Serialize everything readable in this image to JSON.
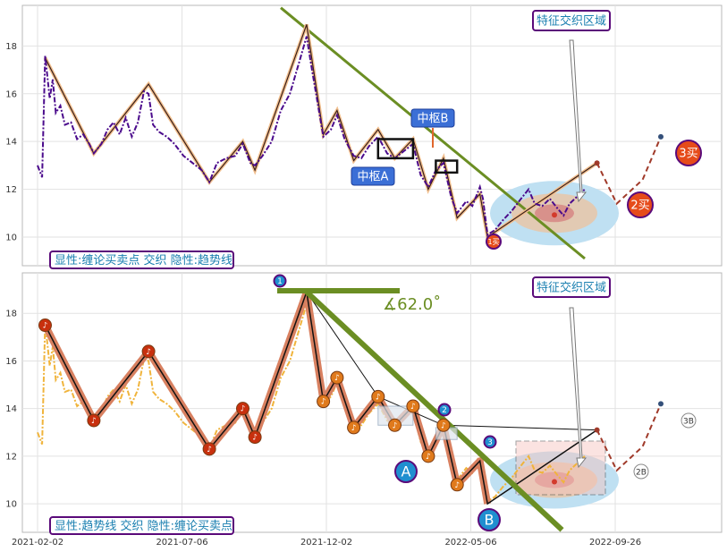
{
  "chart_data": [
    {
      "type": "line",
      "panel": "top",
      "legend_text": "显性:缠论买卖点 交织 隐性:趋势线",
      "ylim": [
        8.8,
        19.7
      ],
      "yticks": [
        10,
        12,
        14,
        16,
        18
      ],
      "zone_label": "特征交织区域",
      "pivot_labels": [
        "中枢A",
        "中枢B"
      ],
      "buy_labels": [
        "1买",
        "2买",
        "3买"
      ],
      "zigzag": [
        {
          "x": 5,
          "y": 17.5
        },
        {
          "x": 37,
          "y": 13.5
        },
        {
          "x": 73,
          "y": 16.4
        },
        {
          "x": 113,
          "y": 12.3
        },
        {
          "x": 135,
          "y": 14.0
        },
        {
          "x": 143,
          "y": 12.8
        },
        {
          "x": 177,
          "y": 18.9
        },
        {
          "x": 188,
          "y": 14.3
        },
        {
          "x": 197,
          "y": 15.3
        },
        {
          "x": 208,
          "y": 13.2
        },
        {
          "x": 224,
          "y": 14.5
        },
        {
          "x": 235,
          "y": 13.3
        },
        {
          "x": 247,
          "y": 14.1
        },
        {
          "x": 257,
          "y": 12.0
        },
        {
          "x": 267,
          "y": 13.3
        },
        {
          "x": 276,
          "y": 10.8
        },
        {
          "x": 291,
          "y": 11.8
        },
        {
          "x": 296,
          "y": 10.0
        },
        {
          "x": 368,
          "y": 13.1
        }
      ],
      "forecast": [
        {
          "x": 368,
          "y": 13.1
        },
        {
          "x": 381,
          "y": 11.4
        },
        {
          "x": 398,
          "y": 12.4
        },
        {
          "x": 410,
          "y": 14.2
        }
      ],
      "price": [
        {
          "x": 0,
          "y": 13.0
        },
        {
          "x": 3,
          "y": 12.5
        },
        {
          "x": 5,
          "y": 17.6
        },
        {
          "x": 8,
          "y": 15.8
        },
        {
          "x": 10,
          "y": 16.6
        },
        {
          "x": 12,
          "y": 15.2
        },
        {
          "x": 15,
          "y": 15.5
        },
        {
          "x": 18,
          "y": 14.7
        },
        {
          "x": 22,
          "y": 14.8
        },
        {
          "x": 26,
          "y": 14.1
        },
        {
          "x": 30,
          "y": 14.3
        },
        {
          "x": 34,
          "y": 13.9
        },
        {
          "x": 37,
          "y": 13.5
        },
        {
          "x": 42,
          "y": 13.9
        },
        {
          "x": 46,
          "y": 14.5
        },
        {
          "x": 50,
          "y": 14.8
        },
        {
          "x": 54,
          "y": 14.3
        },
        {
          "x": 58,
          "y": 15.0
        },
        {
          "x": 62,
          "y": 14.2
        },
        {
          "x": 66,
          "y": 14.8
        },
        {
          "x": 70,
          "y": 16.1
        },
        {
          "x": 73,
          "y": 16.0
        },
        {
          "x": 76,
          "y": 14.7
        },
        {
          "x": 80,
          "y": 14.4
        },
        {
          "x": 85,
          "y": 14.2
        },
        {
          "x": 90,
          "y": 13.9
        },
        {
          "x": 96,
          "y": 13.4
        },
        {
          "x": 102,
          "y": 13.1
        },
        {
          "x": 108,
          "y": 12.8
        },
        {
          "x": 113,
          "y": 12.3
        },
        {
          "x": 118,
          "y": 13.1
        },
        {
          "x": 124,
          "y": 13.3
        },
        {
          "x": 130,
          "y": 13.4
        },
        {
          "x": 135,
          "y": 13.9
        },
        {
          "x": 140,
          "y": 13.1
        },
        {
          "x": 143,
          "y": 13.0
        },
        {
          "x": 148,
          "y": 13.4
        },
        {
          "x": 154,
          "y": 14.0
        },
        {
          "x": 160,
          "y": 15.3
        },
        {
          "x": 166,
          "y": 16.0
        },
        {
          "x": 172,
          "y": 17.3
        },
        {
          "x": 177,
          "y": 18.4
        },
        {
          "x": 180,
          "y": 17.2
        },
        {
          "x": 184,
          "y": 15.7
        },
        {
          "x": 188,
          "y": 14.2
        },
        {
          "x": 193,
          "y": 14.5
        },
        {
          "x": 197,
          "y": 15.1
        },
        {
          "x": 202,
          "y": 14.1
        },
        {
          "x": 208,
          "y": 13.4
        },
        {
          "x": 213,
          "y": 13.3
        },
        {
          "x": 218,
          "y": 13.8
        },
        {
          "x": 224,
          "y": 14.2
        },
        {
          "x": 230,
          "y": 13.5
        },
        {
          "x": 235,
          "y": 13.3
        },
        {
          "x": 241,
          "y": 13.6
        },
        {
          "x": 247,
          "y": 13.9
        },
        {
          "x": 252,
          "y": 12.6
        },
        {
          "x": 257,
          "y": 12.1
        },
        {
          "x": 262,
          "y": 12.8
        },
        {
          "x": 267,
          "y": 13.1
        },
        {
          "x": 272,
          "y": 11.7
        },
        {
          "x": 276,
          "y": 11.0
        },
        {
          "x": 282,
          "y": 11.5
        },
        {
          "x": 286,
          "y": 11.3
        },
        {
          "x": 291,
          "y": 12.1
        },
        {
          "x": 293,
          "y": 11.6
        },
        {
          "x": 296,
          "y": 10.1
        },
        {
          "x": 301,
          "y": 10.3
        },
        {
          "x": 306,
          "y": 10.7
        },
        {
          "x": 312,
          "y": 11.1
        },
        {
          "x": 318,
          "y": 11.6
        },
        {
          "x": 323,
          "y": 12.0
        },
        {
          "x": 327,
          "y": 11.4
        },
        {
          "x": 332,
          "y": 11.3
        },
        {
          "x": 337,
          "y": 11.6
        },
        {
          "x": 342,
          "y": 11.2
        },
        {
          "x": 346,
          "y": 10.9
        },
        {
          "x": 350,
          "y": 11.4
        },
        {
          "x": 355,
          "y": 11.7
        },
        {
          "x": 360,
          "y": 12.0
        }
      ],
      "trendline": [
        {
          "x": 160,
          "y": 19.6
        },
        {
          "x": 360,
          "y": 9.1
        }
      ],
      "pivot_zones": [
        {
          "x0": 224,
          "x1": 247,
          "y0": 13.3,
          "y1": 14.1
        },
        {
          "x0": 262,
          "x1": 276,
          "y0": 12.7,
          "y1": 13.2
        }
      ]
    },
    {
      "type": "line",
      "panel": "bottom",
      "legend_text": "显性:趋势线 交织 隐性:缠论买卖点",
      "ylim": [
        8.8,
        19.7
      ],
      "yticks": [
        10,
        12,
        14,
        16,
        18
      ],
      "xtick_labels": [
        "2021-02-02",
        "2021-07-06",
        "2021-12-02",
        "2022-05-06",
        "2022-09-26"
      ],
      "xticks": [
        0,
        95,
        190,
        285,
        380
      ],
      "zone_label": "特征交织区域",
      "angle_label": "∡62.0˚",
      "circle_labels": [
        "A",
        "B"
      ],
      "marker_numbers": [
        "1",
        "2",
        "3"
      ],
      "end_labels": [
        "2B",
        "3B"
      ]
    }
  ]
}
